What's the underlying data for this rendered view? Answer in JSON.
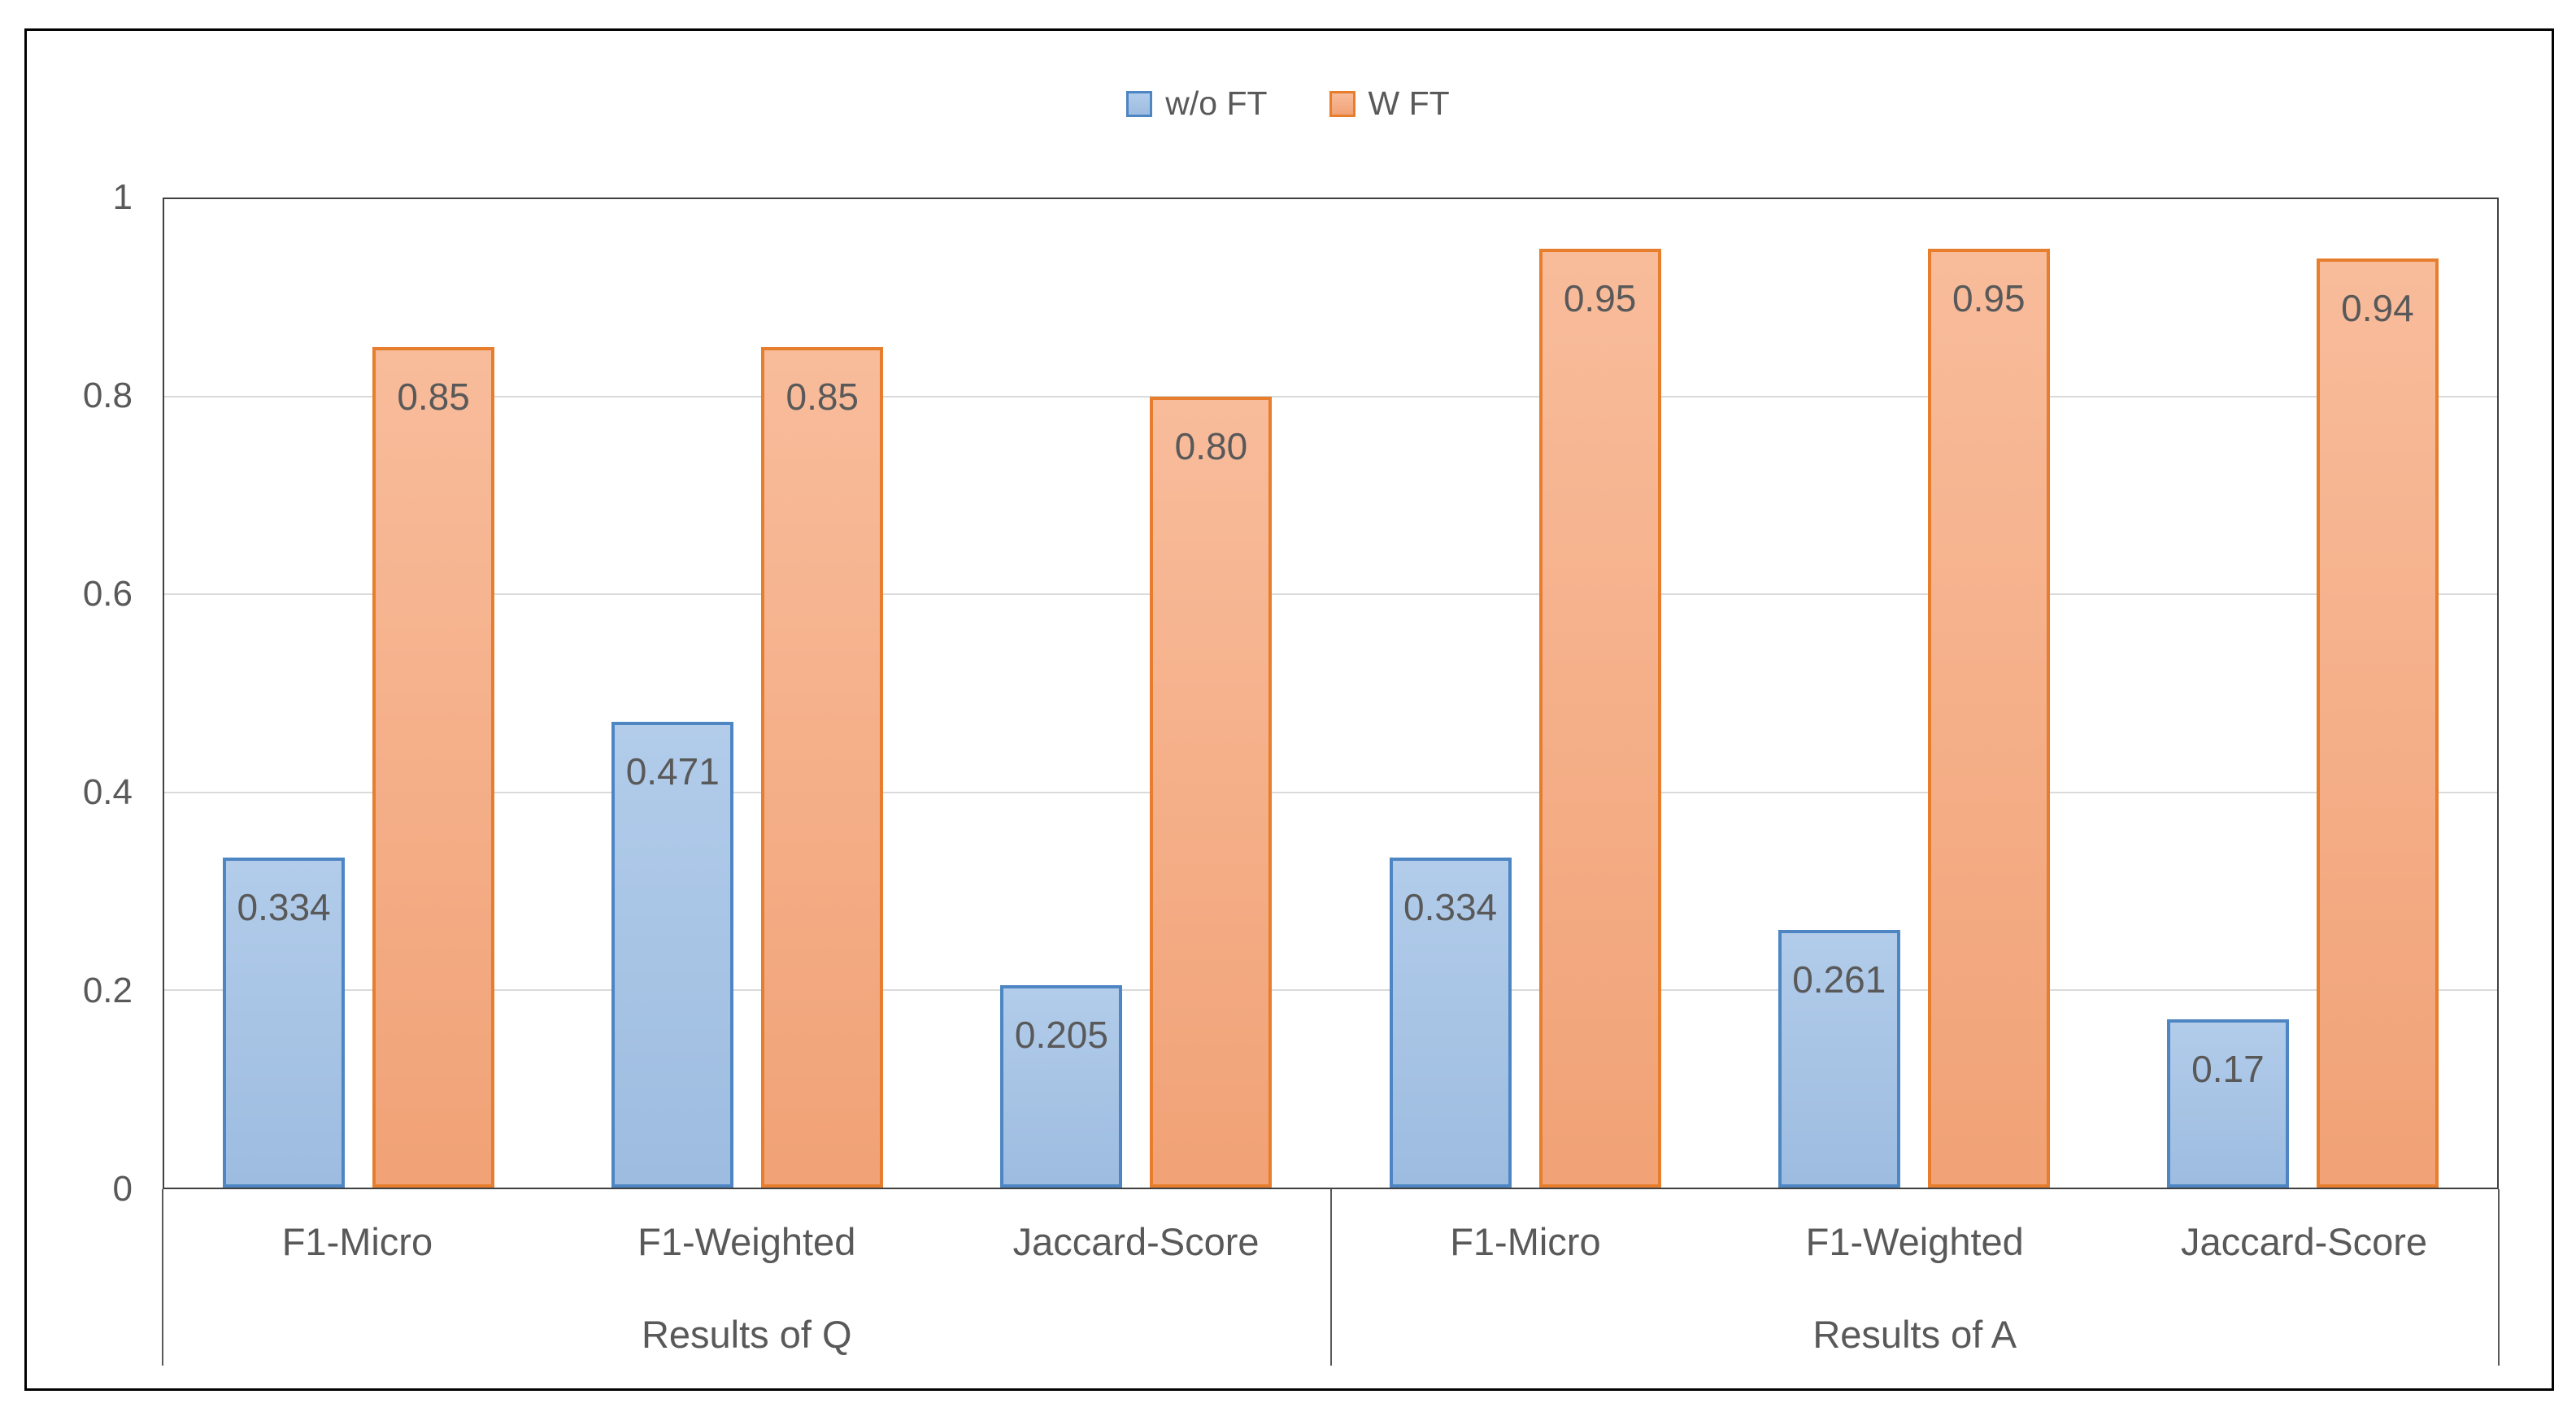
{
  "legend": {
    "items": [
      {
        "label": "w/o FT"
      },
      {
        "label": "W FT"
      }
    ]
  },
  "chart_data": {
    "type": "bar",
    "title": "",
    "xlabel": "",
    "ylabel": "",
    "legend_position": "top-center",
    "grid": true,
    "ylim": [
      0,
      1
    ],
    "yticks": [
      {
        "value": 0,
        "label": "0"
      },
      {
        "value": 0.2,
        "label": "0.2"
      },
      {
        "value": 0.4,
        "label": "0.4"
      },
      {
        "value": 0.6,
        "label": "0.6"
      },
      {
        "value": 0.8,
        "label": "0.8"
      },
      {
        "value": 1,
        "label": "1"
      }
    ],
    "groups": [
      {
        "label": "Results of Q"
      },
      {
        "label": "Results of A"
      }
    ],
    "categories": [
      "F1-Micro",
      "F1-Weighted",
      "Jaccard-Score",
      "F1-Micro",
      "F1-Weighted",
      "Jaccard-Score"
    ],
    "series": [
      {
        "name": "w/o FT",
        "values": [
          0.334,
          0.471,
          0.205,
          0.334,
          0.261,
          0.17
        ],
        "value_labels": [
          "0.334",
          "0.471",
          "0.205",
          "0.334",
          "0.261",
          "0.17"
        ],
        "fill_top": "#B2CCEA",
        "fill_bottom": "#9DBCE0",
        "border": "#4E86C4"
      },
      {
        "name": "W FT",
        "values": [
          0.85,
          0.85,
          0.8,
          0.95,
          0.95,
          0.94
        ],
        "value_labels": [
          "0.85",
          "0.85",
          "0.80",
          "0.95",
          "0.95",
          "0.94"
        ],
        "fill_top": "#F8BC9B",
        "fill_bottom": "#F1A276",
        "border": "#E67E2E"
      }
    ]
  },
  "colors": {
    "axis_text": "#595959",
    "data_label_text": "#595959",
    "gridline": "#DADADA",
    "plot_border": "#404040",
    "outer_border": "#000000",
    "background": "#FFFFFF"
  }
}
